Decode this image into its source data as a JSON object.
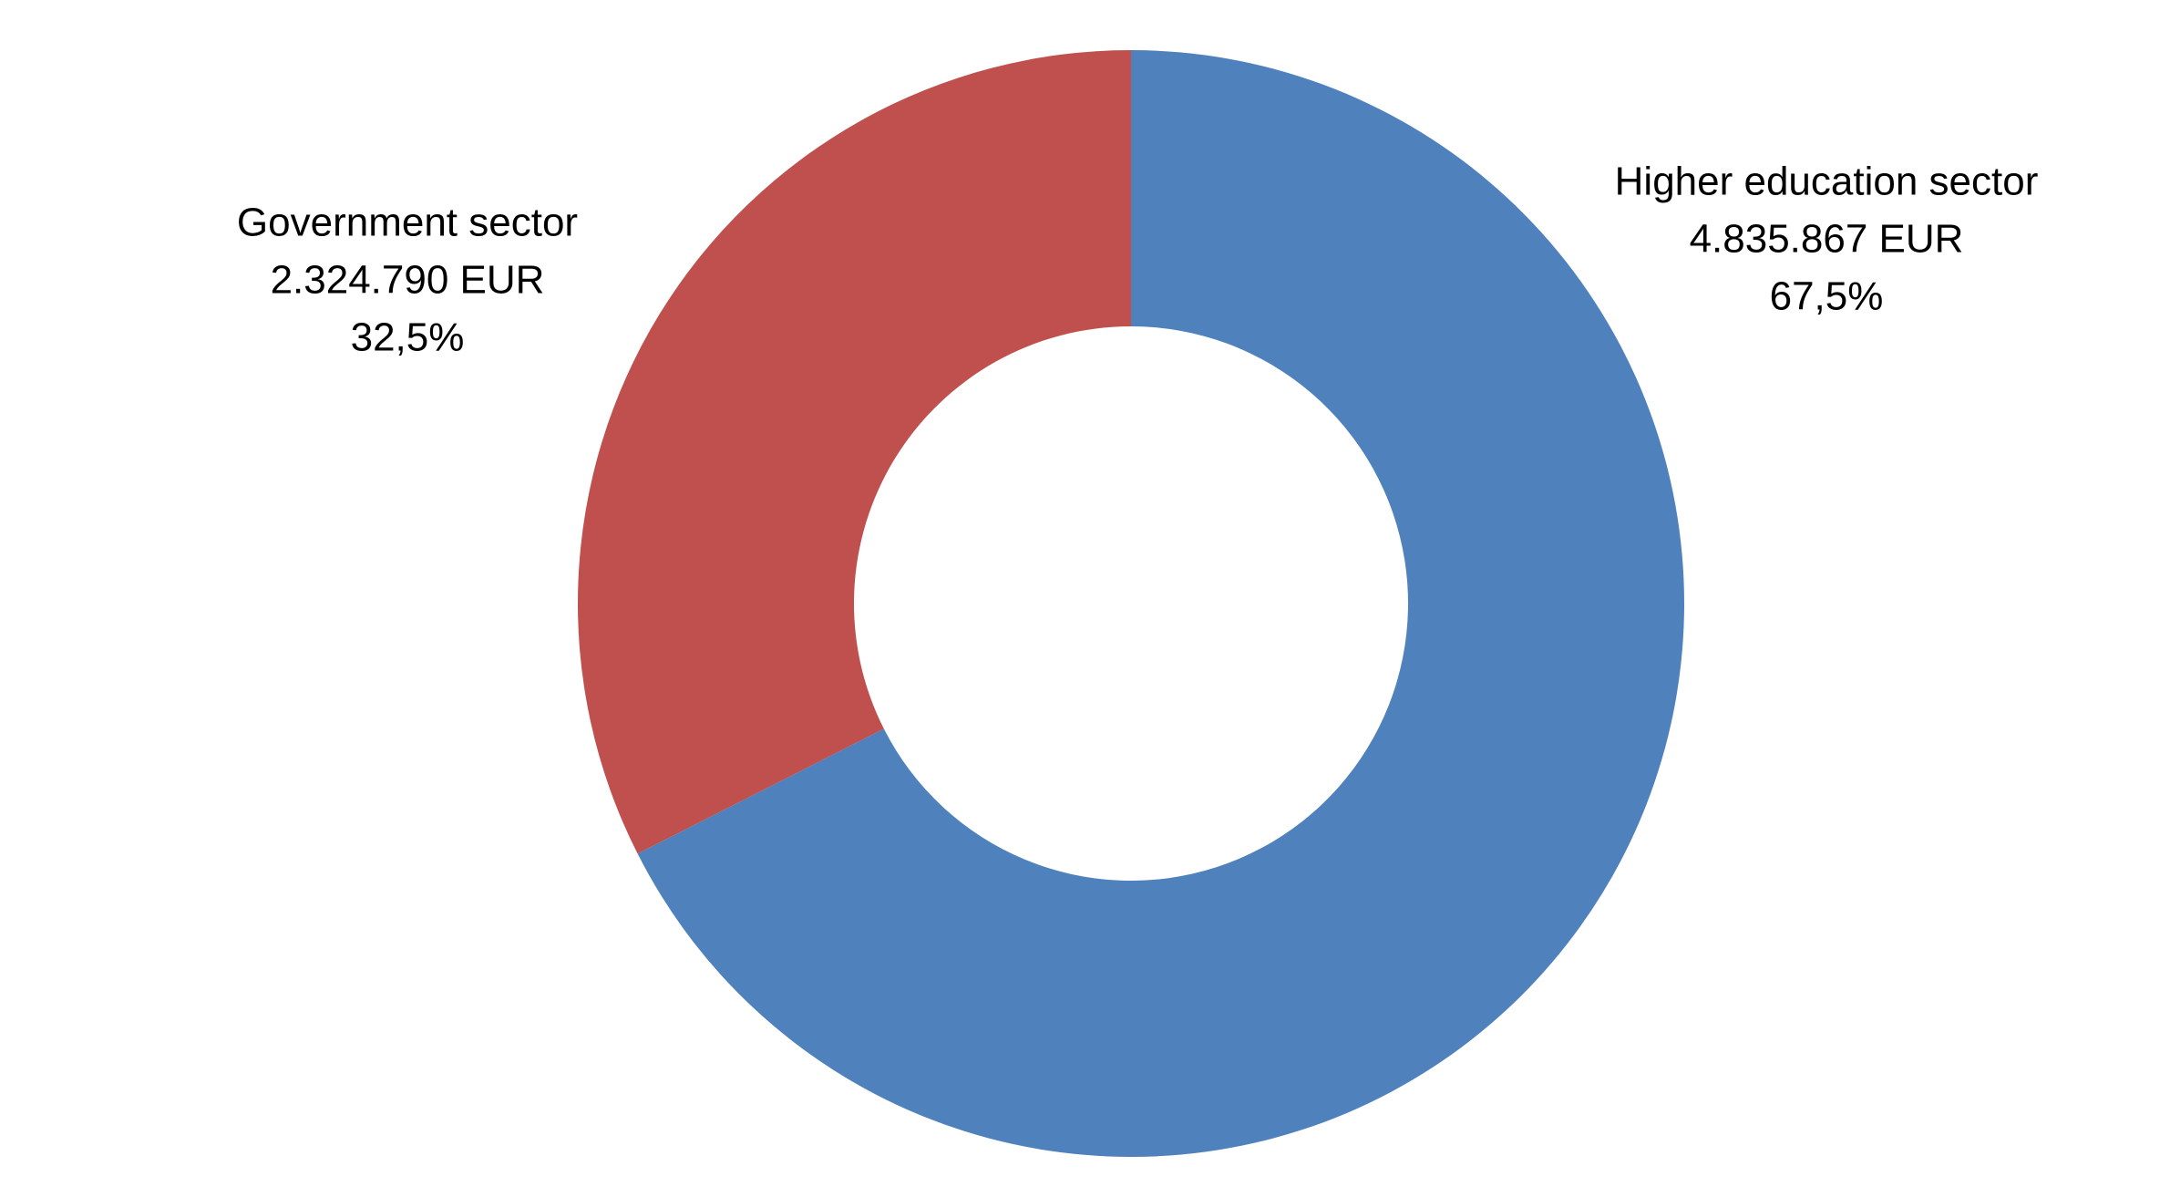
{
  "chart_data": {
    "type": "donut",
    "categories": [
      "Higher education sector",
      "Government sector"
    ],
    "values": [
      4835867,
      2324790
    ],
    "value_labels": [
      "4.835.867 EUR",
      "2.324.790 EUR"
    ],
    "shares": [
      67.5,
      32.5
    ],
    "share_labels": [
      "67,5%",
      "32,5%"
    ],
    "colors": [
      "#4f81bd",
      "#c0504d"
    ]
  }
}
